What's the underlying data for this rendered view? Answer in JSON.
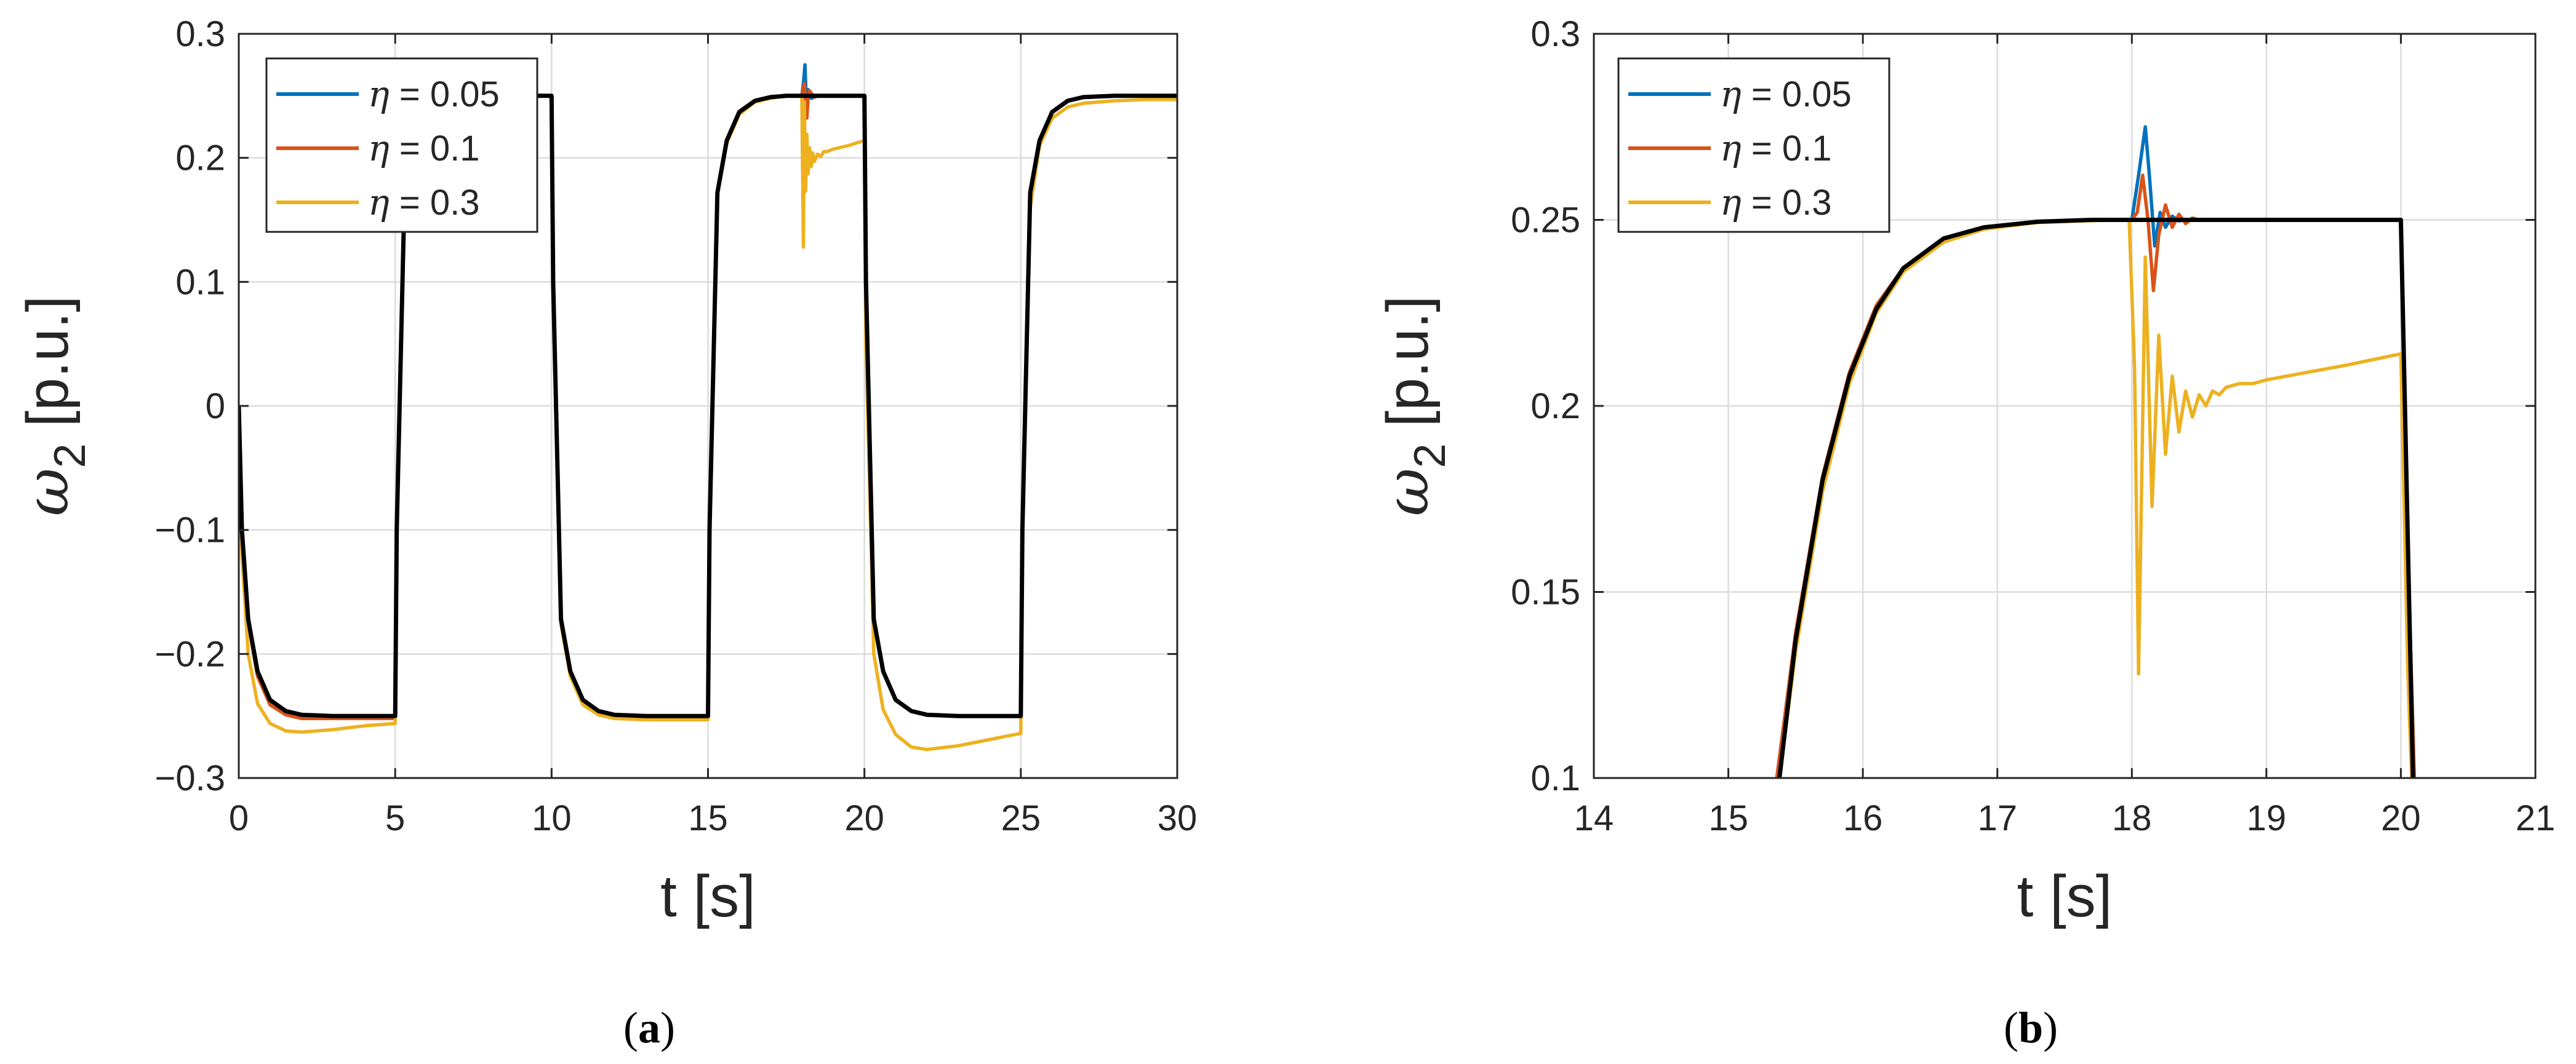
{
  "chart_data": [
    {
      "id": "a",
      "type": "line",
      "panel_label": "a",
      "xlabel": "t [s]",
      "ylabel_symbol": "ω",
      "ylabel_sub": "2",
      "ylabel_unit": " [p.u.]",
      "xlim": [
        0,
        30
      ],
      "ylim": [
        -0.3,
        0.3
      ],
      "xticks": [
        0,
        5,
        10,
        15,
        20,
        25,
        30
      ],
      "xtick_labels": [
        "0",
        "5",
        "10",
        "15",
        "20",
        "25",
        "30"
      ],
      "yticks": [
        -0.3,
        -0.2,
        -0.1,
        0,
        0.1,
        0.2,
        0.3
      ],
      "ytick_labels": [
        "−0.3",
        "−0.2",
        "−0.1",
        "0",
        "0.1",
        "0.2",
        "0.3"
      ],
      "grid": true,
      "legend_position": "top-left",
      "series": [
        {
          "name": "η = 0.05",
          "sym": "η",
          "value_text": " = 0.05",
          "color": "#0072BD",
          "x": [
            0,
            0.1,
            0.3,
            0.6,
            1,
            1.5,
            2,
            3,
            4,
            5,
            5.05,
            5.3,
            5.6,
            6,
            6.5,
            7,
            8,
            9,
            10,
            10.05,
            10.3,
            10.6,
            11,
            11.5,
            12,
            13,
            14,
            15,
            15.05,
            15.3,
            15.6,
            16,
            16.5,
            17,
            17.5,
            18,
            18.05,
            18.1,
            18.15,
            18.2,
            18.3,
            18.5,
            19,
            20,
            20.05,
            20.3,
            20.6,
            21,
            21.5,
            22,
            23,
            24,
            25,
            25.05,
            25.3,
            25.6,
            26,
            26.5,
            27,
            28,
            29,
            30
          ],
          "y": [
            0,
            -0.1,
            -0.172,
            -0.214,
            -0.237,
            -0.246,
            -0.249,
            -0.25,
            -0.25,
            -0.25,
            -0.1,
            0.172,
            0.214,
            0.237,
            0.246,
            0.249,
            0.25,
            0.25,
            0.25,
            0.1,
            -0.172,
            -0.214,
            -0.237,
            -0.246,
            -0.249,
            -0.25,
            -0.25,
            -0.25,
            -0.1,
            0.172,
            0.214,
            0.237,
            0.246,
            0.249,
            0.25,
            0.25,
            0.26,
            0.275,
            0.24,
            0.255,
            0.248,
            0.25,
            0.25,
            0.25,
            0.1,
            -0.172,
            -0.214,
            -0.237,
            -0.246,
            -0.249,
            -0.25,
            -0.25,
            -0.25,
            -0.1,
            0.172,
            0.214,
            0.237,
            0.246,
            0.249,
            0.25,
            0.25,
            0.25
          ]
        },
        {
          "name": "η = 0.1",
          "sym": "η",
          "value_text": " = 0.1",
          "color": "#D95319",
          "x": [
            0,
            0.1,
            0.3,
            0.6,
            1,
            1.5,
            2,
            3,
            4,
            5,
            5.05,
            5.3,
            5.6,
            6,
            6.5,
            7,
            8,
            9,
            10,
            10.05,
            10.3,
            10.6,
            11,
            11.5,
            12,
            13,
            14,
            15,
            15.05,
            15.3,
            15.6,
            16,
            16.5,
            17,
            17.5,
            18,
            18.08,
            18.12,
            18.16,
            18.2,
            18.25,
            18.3,
            18.4,
            18.5,
            19,
            20,
            20.05,
            20.3,
            20.6,
            21,
            21.5,
            22,
            23,
            24,
            25,
            25.05,
            25.3,
            25.6,
            26,
            26.5,
            27,
            28,
            29,
            30
          ],
          "y": [
            0,
            -0.102,
            -0.175,
            -0.218,
            -0.241,
            -0.249,
            -0.252,
            -0.252,
            -0.252,
            -0.252,
            -0.1,
            0.172,
            0.214,
            0.237,
            0.246,
            0.249,
            0.25,
            0.25,
            0.25,
            0.1,
            -0.174,
            -0.216,
            -0.239,
            -0.248,
            -0.251,
            -0.252,
            -0.252,
            -0.252,
            -0.1,
            0.172,
            0.214,
            0.237,
            0.246,
            0.249,
            0.25,
            0.25,
            0.26,
            0.245,
            0.232,
            0.248,
            0.254,
            0.252,
            0.249,
            0.25,
            0.25,
            0.25,
            0.1,
            -0.172,
            -0.214,
            -0.237,
            -0.246,
            -0.249,
            -0.25,
            -0.25,
            -0.25,
            -0.1,
            0.172,
            0.214,
            0.237,
            0.246,
            0.249,
            0.25,
            0.25,
            0.25
          ]
        },
        {
          "name": "η = 0.3",
          "sym": "η",
          "value_text": " = 0.3",
          "color": "#EDB120",
          "x": [
            0,
            0.1,
            0.3,
            0.6,
            1,
            1.5,
            2,
            3,
            4,
            5,
            5.05,
            5.3,
            5.6,
            6,
            6.5,
            7,
            8,
            9,
            10,
            10.05,
            10.3,
            10.6,
            11,
            11.5,
            12,
            13,
            14,
            15,
            15.05,
            15.3,
            15.6,
            16,
            16.5,
            17,
            17.5,
            18,
            18.05,
            18.08,
            18.12,
            18.16,
            18.2,
            18.25,
            18.3,
            18.35,
            18.4,
            18.5,
            18.6,
            18.7,
            18.8,
            19,
            19.5,
            20,
            20.05,
            20.3,
            20.6,
            21,
            21.5,
            22,
            23,
            24,
            25,
            25.05,
            25.3,
            25.6,
            26,
            26.5,
            27,
            28,
            29,
            30
          ],
          "y": [
            0,
            -0.12,
            -0.2,
            -0.24,
            -0.256,
            -0.262,
            -0.263,
            -0.261,
            -0.258,
            -0.256,
            -0.1,
            0.17,
            0.212,
            0.235,
            0.245,
            0.248,
            0.25,
            0.25,
            0.25,
            0.1,
            -0.176,
            -0.218,
            -0.241,
            -0.249,
            -0.252,
            -0.253,
            -0.253,
            -0.253,
            -0.1,
            0.17,
            0.212,
            0.235,
            0.245,
            0.248,
            0.25,
            0.25,
            0.128,
            0.245,
            0.173,
            0.219,
            0.187,
            0.208,
            0.193,
            0.204,
            0.197,
            0.203,
            0.201,
            0.205,
            0.205,
            0.207,
            0.21,
            0.214,
            0.05,
            -0.2,
            -0.245,
            -0.265,
            -0.275,
            -0.277,
            -0.274,
            -0.269,
            -0.264,
            -0.1,
            0.16,
            0.21,
            0.232,
            0.241,
            0.244,
            0.246,
            0.247,
            0.247
          ]
        },
        {
          "name": "reference",
          "color": "#000000",
          "in_legend": false,
          "x": [
            0,
            0.1,
            0.3,
            0.6,
            1,
            1.5,
            2,
            3,
            4,
            5,
            5.05,
            5.3,
            5.6,
            6,
            6.5,
            7,
            8,
            9,
            10,
            10.05,
            10.3,
            10.6,
            11,
            11.5,
            12,
            13,
            14,
            15,
            15.05,
            15.3,
            15.6,
            16,
            16.5,
            17,
            17.5,
            18,
            19,
            20,
            20.05,
            20.3,
            20.6,
            21,
            21.5,
            22,
            23,
            24,
            25,
            25.05,
            25.3,
            25.6,
            26,
            26.5,
            27,
            28,
            29,
            30
          ],
          "y": [
            0,
            -0.1,
            -0.172,
            -0.214,
            -0.237,
            -0.246,
            -0.249,
            -0.25,
            -0.25,
            -0.25,
            -0.1,
            0.172,
            0.214,
            0.237,
            0.246,
            0.249,
            0.25,
            0.25,
            0.25,
            0.1,
            -0.172,
            -0.214,
            -0.237,
            -0.246,
            -0.249,
            -0.25,
            -0.25,
            -0.25,
            -0.1,
            0.172,
            0.214,
            0.237,
            0.246,
            0.249,
            0.25,
            0.25,
            0.25,
            0.25,
            0.1,
            -0.172,
            -0.214,
            -0.237,
            -0.246,
            -0.249,
            -0.25,
            -0.25,
            -0.25,
            -0.1,
            0.172,
            0.214,
            0.237,
            0.246,
            0.249,
            0.25,
            0.25,
            0.25
          ]
        }
      ]
    },
    {
      "id": "b",
      "type": "line",
      "panel_label": "b",
      "xlabel": "t [s]",
      "ylabel_symbol": "ω",
      "ylabel_sub": "2",
      "ylabel_unit": " [p.u.]",
      "xlim": [
        14,
        21
      ],
      "ylim": [
        0.1,
        0.3
      ],
      "xticks": [
        14,
        15,
        16,
        17,
        18,
        19,
        20,
        21
      ],
      "xtick_labels": [
        "14",
        "15",
        "16",
        "17",
        "18",
        "19",
        "20",
        "21"
      ],
      "yticks": [
        0.1,
        0.15,
        0.2,
        0.25,
        0.3
      ],
      "ytick_labels": [
        "0.1",
        "0.15",
        "0.2",
        "0.25",
        "0.3"
      ],
      "grid": true,
      "legend_position": "top-left",
      "series": [
        {
          "name": "η = 0.05",
          "sym": "η",
          "value_text": " = 0.05",
          "color": "#0072BD",
          "x": [
            15.36,
            15.5,
            15.7,
            15.9,
            16.1,
            16.3,
            16.6,
            16.9,
            17.3,
            17.7,
            18,
            18.05,
            18.1,
            18.13,
            18.17,
            18.21,
            18.25,
            18.3,
            18.35,
            18.4,
            18.5,
            19,
            20,
            20.03,
            20.06,
            20.1
          ],
          "y": [
            0.1,
            0.139,
            0.181,
            0.209,
            0.227,
            0.237,
            0.245,
            0.248,
            0.2495,
            0.25,
            0.25,
            0.262,
            0.275,
            0.262,
            0.243,
            0.252,
            0.248,
            0.251,
            0.2497,
            0.2501,
            0.25,
            0.25,
            0.25,
            0.2,
            0.15,
            0.1
          ]
        },
        {
          "name": "η = 0.1",
          "sym": "η",
          "value_text": " = 0.1",
          "color": "#D95319",
          "x": [
            15.36,
            15.5,
            15.7,
            15.9,
            16.1,
            16.3,
            16.6,
            16.9,
            17.3,
            17.7,
            18,
            18.04,
            18.08,
            18.12,
            18.16,
            18.2,
            18.25,
            18.3,
            18.35,
            18.4,
            18.45,
            18.5,
            19,
            20,
            20.03,
            20.06,
            20.1
          ],
          "y": [
            0.1,
            0.139,
            0.181,
            0.209,
            0.227,
            0.237,
            0.245,
            0.248,
            0.2495,
            0.25,
            0.25,
            0.252,
            0.262,
            0.25,
            0.231,
            0.246,
            0.254,
            0.248,
            0.2515,
            0.249,
            0.2505,
            0.25,
            0.25,
            0.25,
            0.2,
            0.15,
            0.1
          ]
        },
        {
          "name": "η = 0.3",
          "sym": "η",
          "value_text": " = 0.3",
          "color": "#EDB120",
          "x": [
            15.38,
            15.5,
            15.7,
            15.9,
            16.1,
            16.3,
            16.6,
            16.9,
            17.3,
            17.7,
            17.98,
            18.02,
            18.05,
            18.1,
            18.15,
            18.2,
            18.25,
            18.3,
            18.35,
            18.4,
            18.45,
            18.5,
            18.55,
            18.6,
            18.65,
            18.7,
            18.8,
            18.9,
            19,
            19.3,
            19.6,
            20,
            20.02,
            20.05,
            20.08
          ],
          "y": [
            0.1,
            0.134,
            0.177,
            0.206,
            0.225,
            0.236,
            0.244,
            0.2475,
            0.2493,
            0.2498,
            0.25,
            0.21,
            0.128,
            0.24,
            0.173,
            0.219,
            0.187,
            0.208,
            0.193,
            0.204,
            0.197,
            0.203,
            0.2,
            0.204,
            0.203,
            0.205,
            0.206,
            0.206,
            0.207,
            0.209,
            0.211,
            0.214,
            0.18,
            0.13,
            0.1
          ]
        },
        {
          "name": "reference",
          "color": "#000000",
          "in_legend": false,
          "x": [
            15.38,
            15.5,
            15.7,
            15.9,
            16.1,
            16.3,
            16.6,
            16.9,
            17.3,
            17.7,
            18,
            19,
            20,
            20.03,
            20.06,
            20.09
          ],
          "y": [
            0.1,
            0.137,
            0.18,
            0.208,
            0.226,
            0.237,
            0.245,
            0.248,
            0.2495,
            0.25,
            0.25,
            0.25,
            0.25,
            0.2,
            0.15,
            0.1
          ]
        }
      ]
    }
  ]
}
